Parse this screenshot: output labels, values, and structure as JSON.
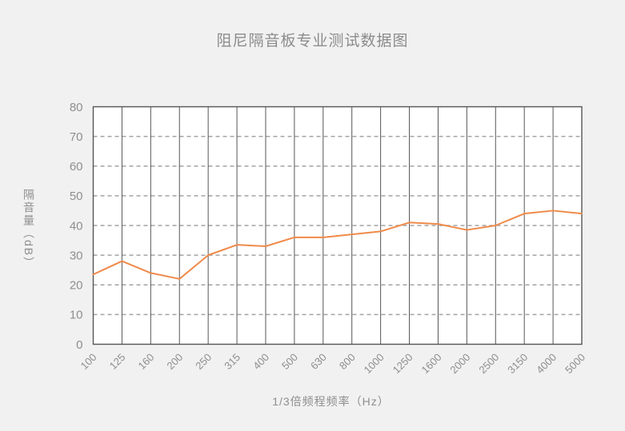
{
  "page": {
    "background_color": "#f1f1f1",
    "plot_background_color": "#ffffff"
  },
  "chart_data": {
    "type": "line",
    "title": "阻尼隔音板专业测试数据图",
    "xlabel": "1/3倍频程频率（Hz）",
    "ylabel": "隔音量（dB）",
    "categories": [
      "100",
      "125",
      "160",
      "200",
      "250",
      "315",
      "400",
      "500",
      "630",
      "800",
      "1000",
      "1250",
      "1600",
      "2000",
      "2500",
      "3150",
      "4000",
      "5000"
    ],
    "values": [
      23.5,
      28,
      24,
      22,
      30,
      33.5,
      33,
      36,
      36,
      37,
      38,
      41,
      40.5,
      38.5,
      40,
      44,
      45,
      44
    ],
    "ylim": [
      0,
      80
    ],
    "ytick_step": 10,
    "ytick_labels": [
      "0",
      "10",
      "20",
      "30",
      "40",
      "50",
      "60",
      "70",
      "80"
    ],
    "legend": "none",
    "grid": {
      "vertical_lines": "solid",
      "horizontal_lines": "dashed",
      "border": "solid"
    },
    "x_label_rotation_deg": 45,
    "colors": {
      "line": "#ef8a4a",
      "vertical_grid": "#565656",
      "horizontal_grid": "#a3a3a3",
      "border": "#565656",
      "tick_text": "#8e8e8e",
      "title_text": "#8c8c8c"
    }
  }
}
